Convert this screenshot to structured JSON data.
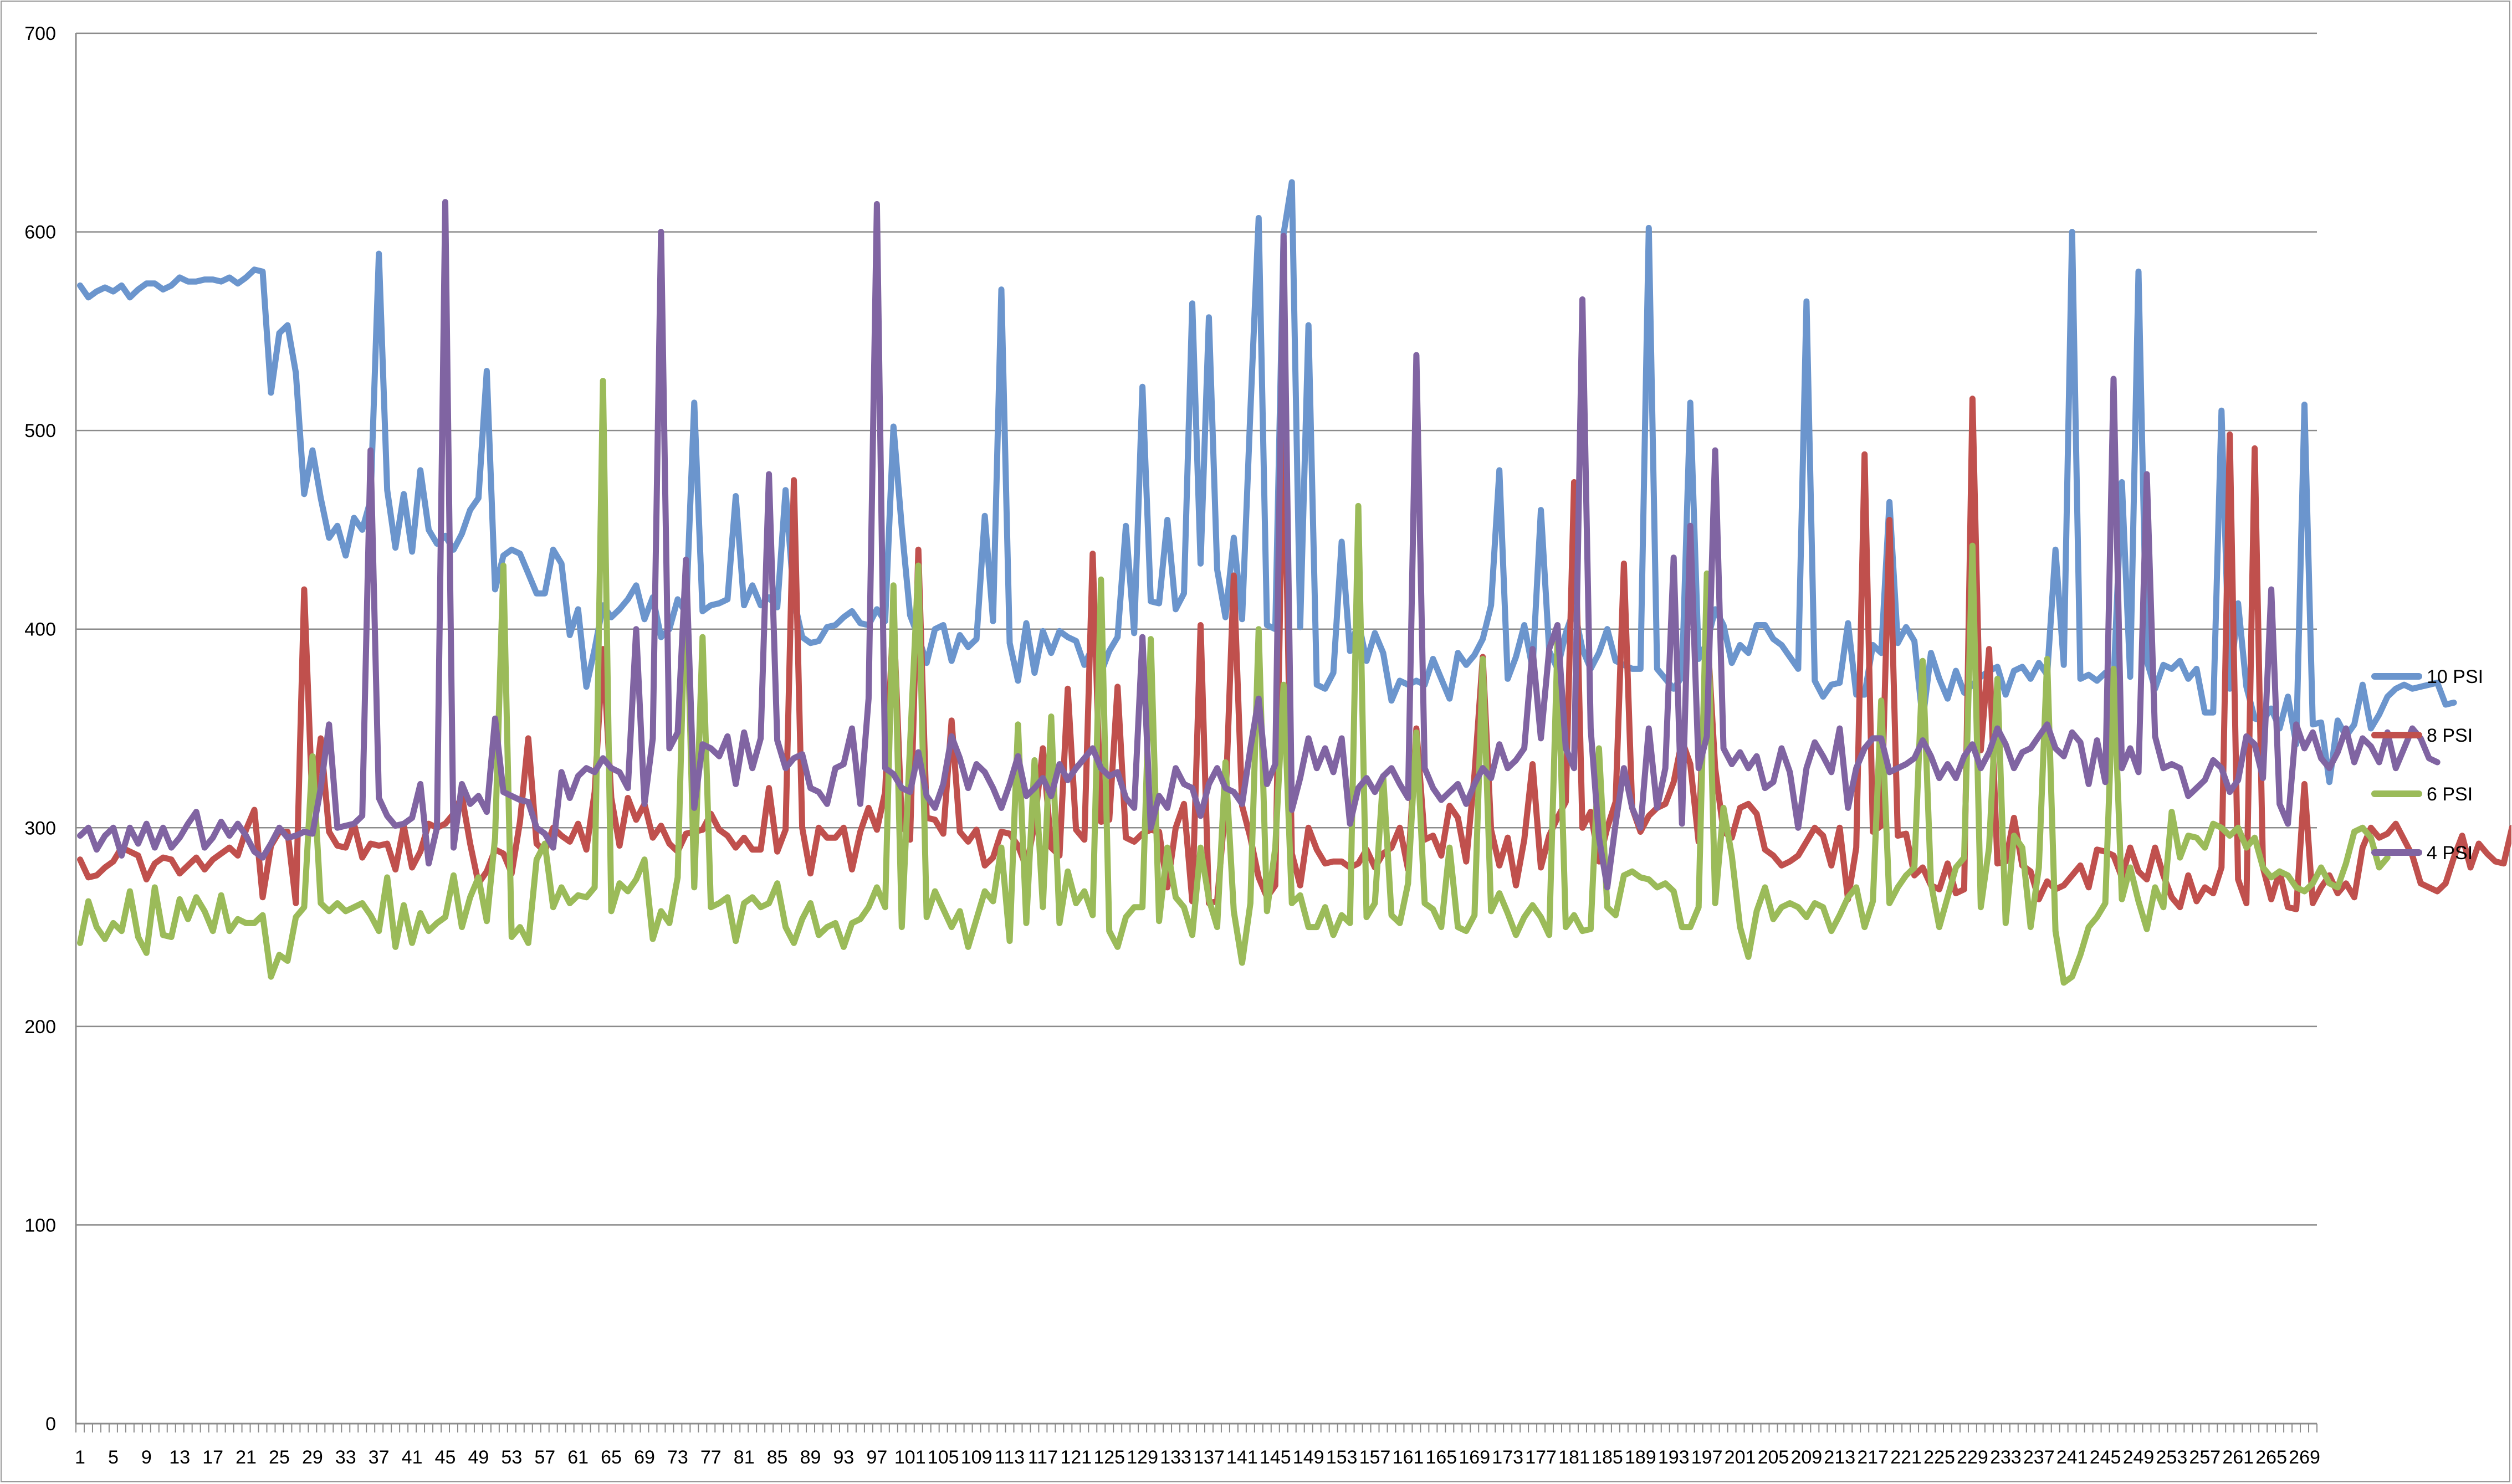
{
  "chart_data": {
    "type": "line",
    "title": "",
    "xlabel": "",
    "ylabel": "",
    "ylim": [
      0,
      700
    ],
    "yticks": [
      0,
      100,
      200,
      300,
      400,
      500,
      600,
      700
    ],
    "x_count": 270,
    "x_tick_every": 4,
    "grid": true,
    "legend": "right",
    "series": [
      {
        "name": "10 PSI",
        "color": "#6b95cd",
        "values": [
          573,
          567,
          570,
          572,
          570,
          573,
          567,
          571,
          574,
          574,
          571,
          573,
          577,
          575,
          575,
          576,
          576,
          575,
          577,
          574,
          577,
          581,
          580,
          519,
          549,
          553,
          529,
          468,
          490,
          466,
          446,
          452,
          437,
          456,
          450,
          465,
          589,
          470,
          441,
          468,
          439,
          480,
          450,
          443,
          447,
          440,
          448,
          460,
          466,
          530,
          420,
          437,
          440,
          438,
          428,
          418,
          418,
          440,
          433,
          397,
          410,
          371,
          390,
          412,
          406,
          410,
          415,
          422,
          405,
          416,
          396,
          400,
          415,
          408,
          514,
          409,
          412,
          413,
          415,
          467,
          412,
          422,
          412,
          416,
          411,
          470,
          415,
          396,
          393,
          394,
          401,
          402,
          406,
          409,
          403,
          402,
          410,
          404,
          502,
          451,
          407,
          396,
          383,
          400,
          402,
          384,
          397,
          391,
          395,
          457,
          404,
          571,
          393,
          374,
          403,
          378,
          399,
          388,
          399,
          396,
          394,
          382,
          391,
          378,
          389,
          396,
          452,
          398,
          522,
          414,
          413,
          455,
          410,
          418,
          564,
          433,
          557,
          430,
          406,
          446,
          405,
          510,
          607,
          402,
          400,
          599,
          625,
          401,
          553,
          372,
          370,
          378,
          444,
          389,
          404,
          384,
          398,
          388,
          364,
          374,
          372,
          374,
          372,
          385,
          375,
          365,
          388,
          382,
          387,
          395,
          412,
          480,
          375,
          386,
          402,
          380,
          460,
          389,
          380,
          398,
          410,
          390,
          380,
          388,
          400,
          384,
          382,
          380,
          380,
          602,
          380,
          375,
          370,
          376,
          514,
          385,
          393,
          410,
          402,
          383,
          392,
          388,
          402,
          402,
          395,
          392,
          386,
          380,
          565,
          374,
          366,
          372,
          373,
          403,
          367,
          367,
          392,
          388,
          464,
          393,
          401,
          394,
          354,
          388,
          375,
          365,
          379,
          368,
          372,
          376,
          379,
          381,
          367,
          379,
          381,
          375,
          383,
          377,
          440,
          382,
          600,
          375,
          377,
          374,
          378,
          373,
          474,
          376,
          580,
          384,
          370,
          382,
          380,
          384,
          375,
          380,
          358,
          358,
          510,
          370,
          413,
          371,
          355,
          354,
          360,
          350,
          366,
          342,
          513,
          352,
          353,
          323,
          354,
          346,
          352,
          372,
          350,
          357,
          366,
          370,
          372,
          370,
          371,
          372,
          373,
          362,
          363
        ]
      },
      {
        "name": "8 PSI",
        "color": "#c0504d",
        "values": [
          284,
          275,
          276,
          280,
          283,
          290,
          288,
          286,
          274,
          282,
          285,
          284,
          277,
          281,
          285,
          279,
          284,
          287,
          290,
          286,
          299,
          309,
          265,
          291,
          298,
          298,
          262,
          420,
          310,
          345,
          298,
          291,
          290,
          302,
          285,
          292,
          291,
          292,
          279,
          301,
          280,
          288,
          302,
          300,
          302,
          307,
          316,
          292,
          272,
          278,
          289,
          287,
          277,
          303,
          345,
          292,
          288,
          300,
          296,
          293,
          302,
          289,
          318,
          390,
          315,
          291,
          315,
          304,
          312,
          295,
          301,
          292,
          288,
          297,
          298,
          299,
          307,
          299,
          296,
          290,
          295,
          289,
          289,
          320,
          288,
          299,
          475,
          300,
          277,
          300,
          295,
          295,
          300,
          279,
          298,
          310,
          299,
          318,
          408,
          302,
          294,
          440,
          305,
          304,
          297,
          354,
          298,
          293,
          299,
          281,
          285,
          298,
          297,
          291,
          280,
          302,
          340,
          290,
          286,
          370,
          299,
          294,
          438,
          303,
          304,
          371,
          295,
          293,
          297,
          299,
          298,
          270,
          300,
          312,
          263,
          402,
          262,
          263,
          312,
          427,
          311,
          295,
          275,
          265,
          271,
          515,
          287,
          271,
          300,
          289,
          282,
          283,
          283,
          280,
          282,
          289,
          280,
          287,
          290,
          300,
          279,
          350,
          294,
          296,
          286,
          311,
          305,
          283,
          327,
          386,
          299,
          281,
          295,
          271,
          294,
          332,
          280,
          296,
          305,
          313,
          474,
          300,
          308,
          283,
          300,
          313,
          433,
          310,
          298,
          306,
          310,
          312,
          323,
          344,
          332,
          293,
          402,
          330,
          298,
          295,
          310,
          312,
          307,
          289,
          286,
          281,
          283,
          286,
          293,
          300,
          296,
          281,
          300,
          264,
          290,
          488,
          298,
          301,
          455,
          296,
          297,
          276,
          280,
          271,
          269,
          282,
          267,
          269,
          516,
          339,
          390,
          282,
          283,
          305,
          281,
          278,
          264,
          273,
          269,
          271,
          276,
          281,
          270,
          289,
          288,
          286,
          275,
          290,
          278,
          274,
          290,
          276,
          265,
          260,
          276,
          263,
          270,
          267,
          280,
          498,
          274,
          262,
          491,
          280,
          264,
          278,
          260,
          259,
          322,
          262,
          270,
          276,
          267,
          272,
          265,
          290,
          300,
          295,
          297,
          302,
          294,
          286,
          272,
          270,
          268,
          272,
          285,
          296,
          280,
          292,
          287,
          283,
          282,
          300,
          294,
          295,
          279,
          276,
          278,
          290,
          293
        ]
      },
      {
        "name": "6 PSI",
        "color": "#9bbb59",
        "values": [
          242,
          263,
          250,
          244,
          252,
          248,
          268,
          245,
          237,
          270,
          246,
          245,
          264,
          254,
          265,
          258,
          248,
          266,
          248,
          254,
          252,
          252,
          256,
          225,
          236,
          233,
          255,
          260,
          336,
          262,
          258,
          262,
          258,
          260,
          262,
          256,
          248,
          275,
          240,
          261,
          242,
          257,
          248,
          252,
          255,
          276,
          250,
          265,
          275,
          253,
          295,
          432,
          245,
          250,
          242,
          284,
          292,
          260,
          270,
          262,
          266,
          265,
          270,
          525,
          258,
          272,
          268,
          274,
          284,
          244,
          258,
          252,
          275,
          432,
          270,
          396,
          260,
          262,
          265,
          243,
          262,
          265,
          260,
          262,
          272,
          250,
          242,
          254,
          262,
          246,
          250,
          252,
          240,
          252,
          254,
          260,
          270,
          260,
          422,
          250,
          342,
          432,
          255,
          268,
          259,
          250,
          258,
          240,
          254,
          268,
          263,
          290,
          243,
          352,
          252,
          334,
          260,
          356,
          252,
          278,
          262,
          268,
          256,
          425,
          248,
          240,
          255,
          260,
          260,
          395,
          253,
          290,
          265,
          260,
          246,
          290,
          264,
          250,
          333,
          258,
          232,
          262,
          400,
          258,
          290,
          372,
          262,
          266,
          250,
          250,
          260,
          246,
          256,
          252,
          462,
          255,
          262,
          326,
          256,
          252,
          272,
          348,
          262,
          259,
          250,
          290,
          250,
          248,
          256,
          385,
          258,
          267,
          257,
          246,
          255,
          261,
          255,
          246,
          393,
          250,
          256,
          248,
          249,
          340,
          260,
          256,
          276,
          278,
          275,
          274,
          270,
          272,
          268,
          250,
          250,
          260,
          428,
          262,
          310,
          286,
          250,
          235,
          258,
          270,
          254,
          260,
          262,
          260,
          255,
          262,
          260,
          248,
          256,
          265,
          270,
          250,
          263,
          364,
          262,
          270,
          276,
          280,
          384,
          272,
          250,
          265,
          280,
          285,
          442,
          260,
          290,
          375,
          252,
          296,
          290,
          250,
          280,
          385,
          248,
          222,
          225,
          236,
          250,
          255,
          262,
          380,
          264,
          280,
          263,
          249,
          270,
          260,
          308,
          285,
          296,
          295,
          290,
          302,
          300,
          296,
          300,
          290,
          295,
          280,
          275,
          278,
          276,
          270,
          268,
          272,
          280,
          272,
          270,
          282,
          298,
          300,
          295,
          280,
          285
        ]
      },
      {
        "name": "4 PSI",
        "color": "#8064a2",
        "values": [
          296,
          300,
          289,
          296,
          300,
          286,
          300,
          292,
          302,
          290,
          300,
          290,
          295,
          302,
          308,
          290,
          295,
          303,
          296,
          302,
          296,
          288,
          285,
          292,
          300,
          295,
          296,
          298,
          297,
          320,
          352,
          300,
          301,
          302,
          306,
          490,
          315,
          306,
          301,
          302,
          305,
          322,
          282,
          300,
          615,
          290,
          322,
          312,
          316,
          308,
          355,
          318,
          316,
          314,
          313,
          300,
          297,
          290,
          328,
          315,
          326,
          330,
          328,
          335,
          330,
          328,
          320,
          400,
          312,
          345,
          600,
          340,
          348,
          435,
          310,
          342,
          340,
          336,
          346,
          322,
          348,
          330,
          345,
          478,
          344,
          330,
          335,
          337,
          320,
          318,
          312,
          330,
          332,
          350,
          312,
          365,
          614,
          330,
          327,
          320,
          318,
          338,
          316,
          310,
          322,
          346,
          335,
          320,
          332,
          328,
          320,
          310,
          322,
          336,
          316,
          320,
          325,
          316,
          332,
          324,
          330,
          335,
          340,
          330,
          326,
          328,
          315,
          310,
          396,
          300,
          316,
          310,
          330,
          322,
          320,
          306,
          322,
          330,
          320,
          318,
          312,
          340,
          365,
          322,
          332,
          598,
          309,
          325,
          345,
          330,
          340,
          328,
          345,
          302,
          320,
          325,
          318,
          326,
          330,
          322,
          315,
          538,
          330,
          320,
          314,
          318,
          322,
          312,
          322,
          330,
          325,
          342,
          330,
          334,
          340,
          390,
          345,
          390,
          402,
          340,
          330,
          566,
          350,
          295,
          270,
          302,
          330,
          310,
          300,
          350,
          310,
          330,
          436,
          302,
          452,
          330,
          346,
          490,
          340,
          332,
          338,
          330,
          336,
          320,
          323,
          340,
          328,
          300,
          330,
          343,
          336,
          328,
          350,
          310,
          330,
          340,
          345,
          345,
          328,
          330,
          332,
          335,
          344,
          336,
          325,
          332,
          325,
          336,
          342,
          330,
          338,
          350,
          342,
          330,
          338,
          340,
          346,
          352,
          340,
          336,
          348,
          343,
          322,
          344,
          323,
          526,
          330,
          340,
          328,
          478,
          346,
          330,
          332,
          330,
          316,
          320,
          324,
          334,
          330,
          318,
          324,
          346,
          342,
          325,
          420,
          312,
          302,
          352,
          340,
          348,
          335,
          330,
          338,
          350,
          333,
          345,
          341,
          333,
          348,
          330,
          340,
          350,
          345,
          335,
          333
        ]
      }
    ]
  }
}
